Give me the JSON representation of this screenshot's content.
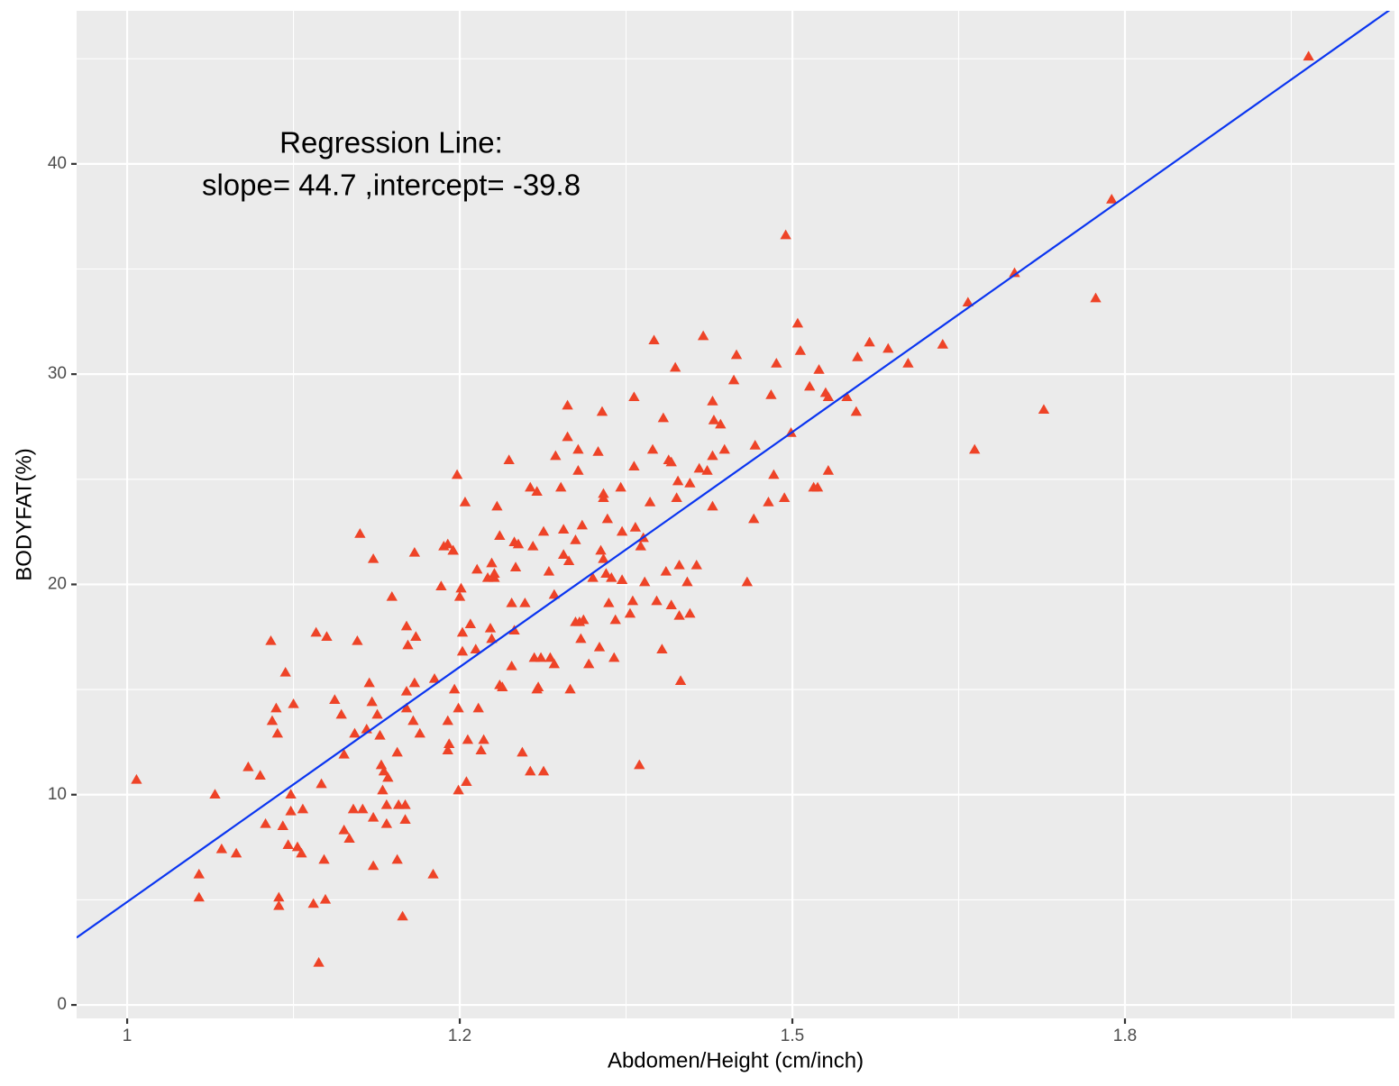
{
  "chart_data": {
    "type": "scatter",
    "xlabel": "Abdomen/Height (cm/inch)",
    "ylabel": "BODYFAT(%)",
    "annotation": [
      "Regression Line:",
      "slope=  44.7 ,intercept=  -39.8"
    ],
    "regression": {
      "slope": 44.7,
      "intercept": -39.8,
      "color": "#0a35f0"
    },
    "xlim": [
      0.962,
      1.9526
    ],
    "ylim": [
      -0.64,
      47.28
    ],
    "xticks": [
      1.0,
      {
        "value": 1.25,
        "label": "1.2"
      },
      1.5,
      {
        "value": 1.75,
        "label": "1.8"
      }
    ],
    "yticks": [
      0,
      10,
      20,
      30,
      40
    ],
    "x_minor_grid": [
      1.125,
      1.375,
      1.625,
      1.875
    ],
    "y_minor_grid": [
      5,
      15,
      25,
      35,
      45
    ],
    "grid": true,
    "series": [
      {
        "color": "#ee4327",
        "x": [
          1.007,
          1.054,
          1.054,
          1.066,
          1.071,
          1.082,
          1.091,
          1.1,
          1.104,
          1.108,
          1.109,
          1.112,
          1.113,
          1.114,
          1.114,
          1.117,
          1.119,
          1.121,
          1.123,
          1.123,
          1.125,
          1.128,
          1.131,
          1.132,
          1.14,
          1.142,
          1.144,
          1.146,
          1.148,
          1.149,
          1.15,
          1.156,
          1.161,
          1.163,
          1.163,
          1.167,
          1.17,
          1.171,
          1.173,
          1.175,
          1.177,
          1.18,
          1.182,
          1.184,
          1.185,
          1.185,
          1.185,
          1.188,
          1.19,
          1.191,
          1.192,
          1.193,
          1.195,
          1.195,
          1.196,
          1.199,
          1.203,
          1.203,
          1.204,
          1.207,
          1.209,
          1.209,
          1.21,
          1.21,
          1.21,
          1.211,
          1.215,
          1.216,
          1.216,
          1.217,
          1.22,
          1.23,
          1.231,
          1.236,
          1.238,
          1.241,
          1.241,
          1.241,
          1.242,
          1.245,
          1.245,
          1.246,
          1.248,
          1.249,
          1.249,
          1.25,
          1.251,
          1.252,
          1.252,
          1.254,
          1.255,
          1.256,
          1.258,
          1.262,
          1.263,
          1.264,
          1.266,
          1.268,
          1.271,
          1.273,
          1.274,
          1.274,
          1.276,
          1.276,
          1.278,
          1.28,
          1.28,
          1.282,
          1.287,
          1.289,
          1.289,
          1.291,
          1.291,
          1.292,
          1.294,
          1.297,
          1.299,
          1.303,
          1.303,
          1.305,
          1.306,
          1.308,
          1.308,
          1.309,
          1.311,
          1.313,
          1.313,
          1.317,
          1.318,
          1.321,
          1.321,
          1.322,
          1.326,
          1.328,
          1.328,
          1.331,
          1.331,
          1.332,
          1.333,
          1.337,
          1.337,
          1.339,
          1.339,
          1.34,
          1.341,
          1.342,
          1.343,
          1.347,
          1.35,
          1.354,
          1.355,
          1.356,
          1.357,
          1.358,
          1.358,
          1.358,
          1.36,
          1.361,
          1.362,
          1.364,
          1.366,
          1.367,
          1.371,
          1.372,
          1.372,
          1.378,
          1.38,
          1.381,
          1.381,
          1.382,
          1.385,
          1.386,
          1.388,
          1.389,
          1.393,
          1.395,
          1.396,
          1.398,
          1.402,
          1.403,
          1.405,
          1.407,
          1.409,
          1.409,
          1.412,
          1.413,
          1.414,
          1.415,
          1.415,
          1.416,
          1.421,
          1.423,
          1.423,
          1.428,
          1.43,
          1.433,
          1.436,
          1.44,
          1.44,
          1.44,
          1.441,
          1.446,
          1.449,
          1.456,
          1.458,
          1.466,
          1.471,
          1.472,
          1.482,
          1.484,
          1.486,
          1.488,
          1.494,
          1.495,
          1.499,
          1.504,
          1.506,
          1.513,
          1.516,
          1.519,
          1.52,
          1.525,
          1.527,
          1.527,
          1.541,
          1.548,
          1.549,
          1.558,
          1.572,
          1.587,
          1.613,
          1.632,
          1.637,
          1.667,
          1.689,
          1.728,
          1.74,
          1.888
        ],
        "values": [
          10.7,
          6.2,
          5.1,
          10.0,
          7.4,
          7.2,
          11.3,
          10.9,
          8.6,
          17.3,
          13.5,
          14.1,
          12.9,
          5.1,
          4.7,
          8.5,
          15.8,
          7.6,
          10.0,
          9.2,
          14.3,
          7.5,
          7.2,
          9.3,
          4.8,
          17.7,
          2.0,
          10.5,
          6.9,
          5.0,
          17.5,
          14.5,
          13.8,
          11.9,
          8.3,
          7.9,
          9.3,
          12.9,
          17.3,
          22.4,
          9.3,
          13.1,
          15.3,
          14.4,
          21.2,
          8.9,
          6.6,
          13.8,
          12.8,
          11.4,
          10.2,
          11.1,
          8.6,
          9.5,
          10.8,
          19.4,
          12.0,
          6.9,
          9.5,
          4.2,
          9.5,
          8.8,
          18.0,
          14.9,
          14.1,
          17.1,
          13.5,
          21.5,
          15.3,
          17.5,
          12.9,
          6.2,
          15.5,
          19.9,
          21.8,
          13.5,
          21.9,
          12.1,
          12.4,
          21.6,
          21.6,
          15.0,
          25.2,
          14.1,
          10.2,
          19.4,
          19.8,
          17.7,
          16.8,
          23.9,
          10.6,
          12.6,
          18.1,
          16.9,
          20.7,
          14.1,
          12.1,
          12.6,
          20.3,
          17.9,
          21.0,
          17.4,
          20.3,
          20.5,
          23.7,
          22.3,
          15.2,
          15.1,
          25.9,
          19.1,
          16.1,
          22.0,
          17.8,
          20.8,
          21.9,
          12.0,
          19.1,
          24.6,
          11.1,
          21.8,
          16.5,
          15.0,
          24.4,
          15.1,
          16.5,
          22.5,
          11.1,
          20.6,
          16.5,
          16.2,
          19.5,
          26.1,
          24.6,
          22.6,
          21.4,
          27.0,
          28.5,
          21.1,
          15.0,
          18.2,
          22.1,
          26.4,
          25.4,
          18.2,
          17.4,
          22.8,
          18.3,
          16.2,
          20.3,
          26.3,
          17.0,
          21.6,
          28.2,
          21.2,
          24.3,
          24.1,
          20.5,
          23.1,
          19.1,
          20.3,
          16.5,
          18.3,
          24.6,
          22.5,
          20.2,
          18.6,
          19.2,
          25.6,
          28.9,
          22.7,
          11.4,
          21.8,
          22.2,
          20.1,
          23.9,
          26.4,
          31.6,
          19.2,
          16.9,
          27.9,
          20.6,
          25.9,
          19.0,
          25.8,
          30.3,
          24.1,
          24.9,
          20.9,
          18.5,
          15.4,
          20.1,
          18.6,
          24.8,
          20.9,
          25.5,
          31.8,
          25.4,
          28.7,
          26.1,
          23.7,
          27.8,
          27.6,
          26.4,
          29.7,
          30.9,
          20.1,
          23.1,
          26.6,
          23.9,
          29.0,
          25.2,
          30.5,
          24.1,
          36.6,
          27.2,
          32.4,
          31.1,
          29.4,
          24.6,
          24.6,
          30.2,
          29.1,
          28.9,
          25.4,
          28.9,
          28.2,
          30.8,
          31.5,
          31.2,
          30.5,
          31.4,
          33.4,
          26.4,
          34.8,
          28.3,
          33.6,
          38.3,
          45.1
        ]
      }
    ]
  }
}
